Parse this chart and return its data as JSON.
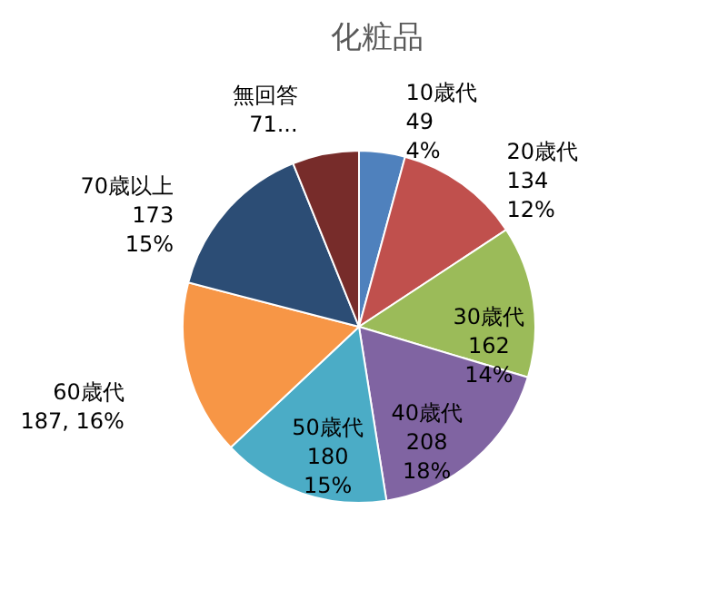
{
  "chart_data": {
    "type": "pie",
    "title": "化粧品",
    "categories": [
      "10歳代",
      "20歳代",
      "30歳代",
      "40歳代",
      "50歳代",
      "60歳代",
      "70歳以上",
      "無回答"
    ],
    "values": [
      49,
      134,
      162,
      208,
      180,
      187,
      173,
      71
    ],
    "colors": [
      "#4f81bd",
      "#c0504d",
      "#9bbb59",
      "#8064a2",
      "#4bacc6",
      "#f79646",
      "#2c4d75",
      "#772c2a"
    ],
    "value_labels": [
      "49\n4%",
      "134\n12%",
      "162\n14%",
      "208\n18%",
      "180\n15%",
      "187, 16%",
      "173\n15%",
      "71..."
    ],
    "legend": false
  }
}
